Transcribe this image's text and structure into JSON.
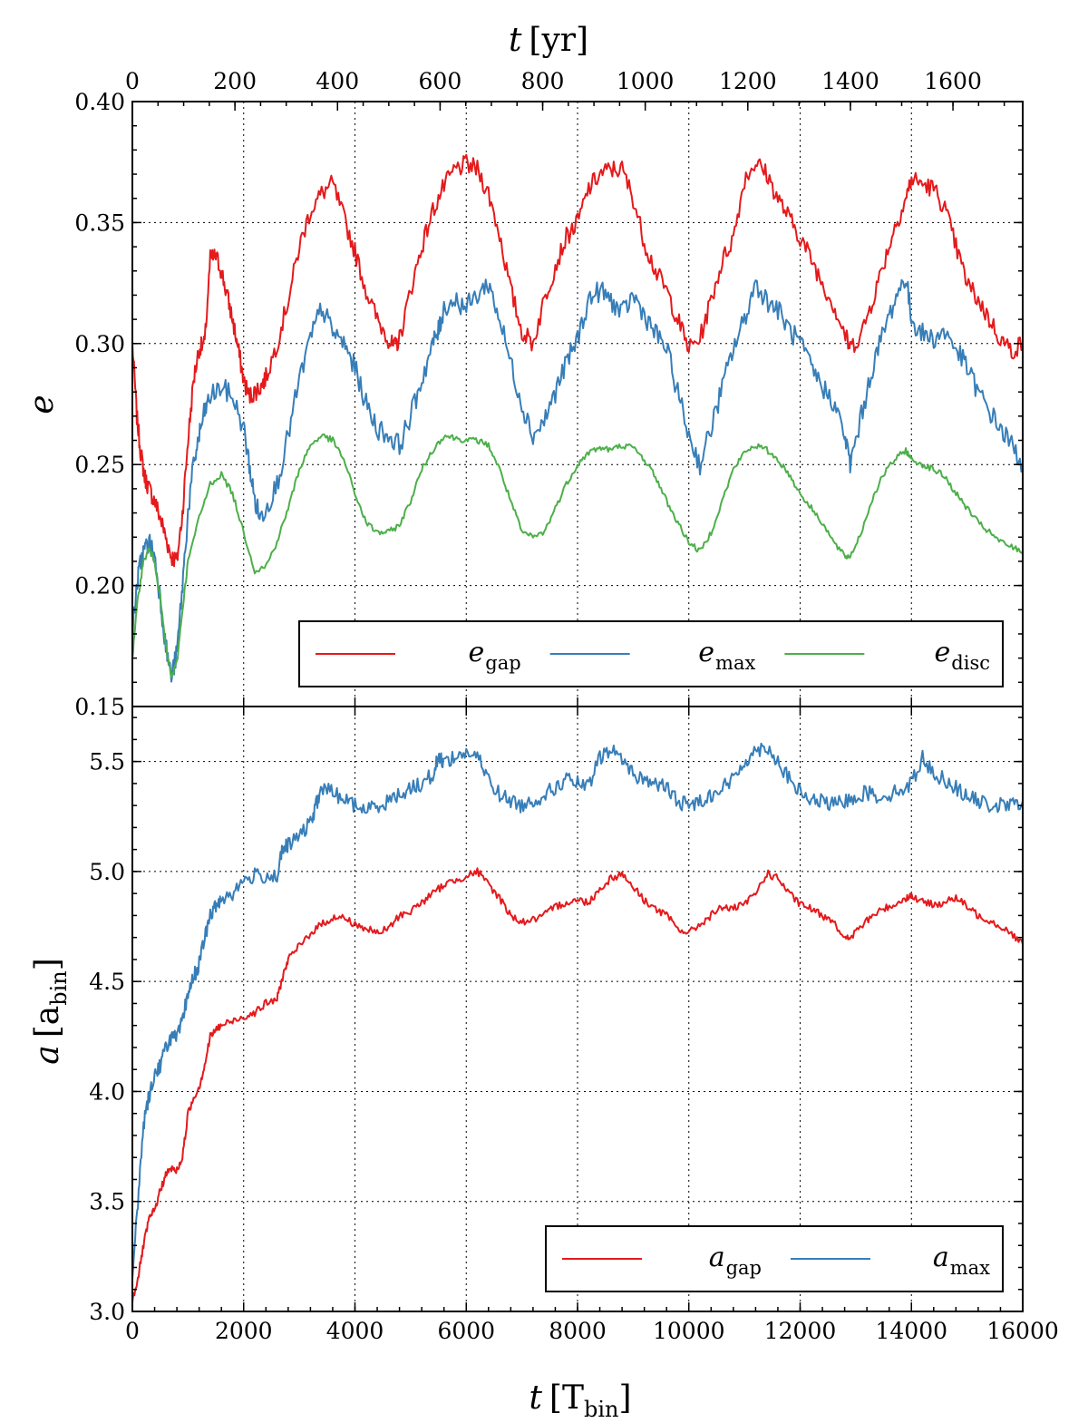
{
  "chart_data": [
    {
      "type": "line",
      "panel": "top",
      "ylabel": "e",
      "top_xlabel": "t [yr]",
      "ylim": [
        0.15,
        0.4
      ],
      "xlim": [
        0,
        16000
      ],
      "yticks": [
        "0.15",
        "0.20",
        "0.25",
        "0.30",
        "0.35",
        "0.40"
      ],
      "top_xticks": [
        "0",
        "200",
        "400",
        "600",
        "800",
        "1000",
        "1200",
        "1400",
        "1600"
      ],
      "top_xtick_values_yr": [
        0,
        200,
        400,
        600,
        800,
        1000,
        1200,
        1400,
        1600
      ],
      "yr_per_tbin": 0.1085,
      "grid": true,
      "legend_position": "lower-right",
      "colors": {
        "gap": "#e41a1c",
        "max": "#377eb8",
        "disc": "#4daf4a"
      },
      "series": [
        {
          "name": "e_gap",
          "key": "gap",
          "label_main": "e",
          "label_sub": "gap",
          "x": [
            0,
            80,
            150,
            220,
            300,
            400,
            500,
            600,
            700,
            800,
            900,
            1000,
            1100,
            1200,
            1300,
            1400,
            1500,
            1600,
            1700,
            1800,
            1900,
            2000,
            2100,
            2200,
            2300,
            2400,
            2600,
            2800,
            3000,
            3200,
            3400,
            3600,
            3800,
            4000,
            4200,
            4400,
            4600,
            4700,
            4800,
            5000,
            5200,
            5400,
            5600,
            5800,
            6000,
            6200,
            6400,
            6600,
            6800,
            7000,
            7200,
            7400,
            7600,
            7800,
            8000,
            8200,
            8400,
            8600,
            8800,
            9000,
            9200,
            9400,
            9600,
            9800,
            10000,
            10200,
            10400,
            10600,
            10800,
            11000,
            11200,
            11400,
            11600,
            11800,
            12000,
            12200,
            12400,
            12600,
            12800,
            12900,
            13100,
            13300,
            13500,
            13700,
            13900,
            14000,
            14200,
            14400,
            14600,
            14800,
            15000,
            15200,
            15400,
            15600,
            15800,
            16000
          ],
          "y": [
            0.3,
            0.27,
            0.255,
            0.245,
            0.24,
            0.235,
            0.228,
            0.22,
            0.212,
            0.21,
            0.23,
            0.26,
            0.285,
            0.298,
            0.3,
            0.335,
            0.336,
            0.33,
            0.32,
            0.31,
            0.298,
            0.285,
            0.278,
            0.28,
            0.282,
            0.286,
            0.3,
            0.318,
            0.34,
            0.355,
            0.362,
            0.366,
            0.352,
            0.338,
            0.322,
            0.31,
            0.302,
            0.298,
            0.302,
            0.322,
            0.34,
            0.355,
            0.365,
            0.372,
            0.374,
            0.372,
            0.362,
            0.345,
            0.322,
            0.305,
            0.3,
            0.318,
            0.332,
            0.344,
            0.35,
            0.364,
            0.37,
            0.372,
            0.372,
            0.36,
            0.342,
            0.33,
            0.322,
            0.31,
            0.298,
            0.302,
            0.318,
            0.334,
            0.344,
            0.368,
            0.375,
            0.37,
            0.36,
            0.352,
            0.344,
            0.335,
            0.325,
            0.316,
            0.304,
            0.298,
            0.304,
            0.318,
            0.333,
            0.348,
            0.36,
            0.368,
            0.366,
            0.364,
            0.356,
            0.34,
            0.325,
            0.318,
            0.31,
            0.302,
            0.297,
            0.3
          ]
        },
        {
          "name": "e_max",
          "key": "max",
          "label_main": "e",
          "label_sub": "max",
          "x": [
            0,
            80,
            150,
            220,
            300,
            400,
            500,
            600,
            700,
            800,
            900,
            1000,
            1100,
            1200,
            1300,
            1400,
            1600,
            1800,
            2000,
            2100,
            2200,
            2300,
            2400,
            2600,
            2800,
            3000,
            3200,
            3400,
            3600,
            3800,
            4000,
            4200,
            4400,
            4600,
            4800,
            5000,
            5200,
            5400,
            5500,
            5600,
            5800,
            6000,
            6200,
            6400,
            6600,
            6800,
            7000,
            7200,
            7400,
            7600,
            7800,
            8000,
            8200,
            8400,
            8600,
            8800,
            9000,
            9200,
            9400,
            9600,
            9800,
            10000,
            10200,
            10400,
            10600,
            10800,
            11000,
            11200,
            11400,
            11600,
            11800,
            12000,
            12200,
            12400,
            12600,
            12800,
            12900,
            13100,
            13300,
            13500,
            13700,
            13900,
            14000,
            14200,
            14400,
            14600,
            14800,
            15000,
            15200,
            15400,
            15600,
            15800,
            16000
          ],
          "y": [
            0.18,
            0.2,
            0.21,
            0.215,
            0.218,
            0.212,
            0.195,
            0.175,
            0.162,
            0.172,
            0.2,
            0.23,
            0.25,
            0.262,
            0.272,
            0.278,
            0.282,
            0.278,
            0.265,
            0.25,
            0.235,
            0.228,
            0.232,
            0.242,
            0.262,
            0.285,
            0.302,
            0.315,
            0.305,
            0.3,
            0.29,
            0.275,
            0.265,
            0.262,
            0.258,
            0.27,
            0.285,
            0.3,
            0.305,
            0.315,
            0.318,
            0.315,
            0.32,
            0.325,
            0.31,
            0.292,
            0.275,
            0.262,
            0.268,
            0.28,
            0.292,
            0.302,
            0.318,
            0.322,
            0.318,
            0.312,
            0.32,
            0.312,
            0.304,
            0.298,
            0.28,
            0.262,
            0.25,
            0.265,
            0.282,
            0.298,
            0.31,
            0.325,
            0.318,
            0.314,
            0.306,
            0.3,
            0.29,
            0.282,
            0.276,
            0.262,
            0.25,
            0.27,
            0.29,
            0.305,
            0.318,
            0.328,
            0.31,
            0.304,
            0.302,
            0.305,
            0.298,
            0.29,
            0.28,
            0.272,
            0.265,
            0.258,
            0.25
          ]
        },
        {
          "name": "e_disc",
          "key": "disc",
          "label_main": "e",
          "label_sub": "disc",
          "x": [
            0,
            100,
            200,
            300,
            400,
            500,
            600,
            700,
            800,
            900,
            1000,
            1200,
            1400,
            1600,
            1800,
            2000,
            2200,
            2400,
            2600,
            2800,
            3000,
            3200,
            3400,
            3600,
            3800,
            4000,
            4200,
            4400,
            4600,
            4800,
            5000,
            5200,
            5400,
            5600,
            5800,
            6000,
            6200,
            6400,
            6600,
            6800,
            7000,
            7200,
            7400,
            7600,
            7800,
            8000,
            8200,
            8400,
            8600,
            8800,
            9000,
            9200,
            9400,
            9600,
            9800,
            10000,
            10200,
            10400,
            10600,
            10800,
            11000,
            11200,
            11400,
            11600,
            11800,
            12000,
            12200,
            12400,
            12600,
            12800,
            12900,
            13100,
            13300,
            13500,
            13700,
            13900,
            14000,
            14200,
            14400,
            14600,
            14800,
            15000,
            15200,
            15400,
            15600,
            15800,
            16000
          ],
          "y": [
            0.17,
            0.195,
            0.21,
            0.215,
            0.21,
            0.195,
            0.175,
            0.162,
            0.168,
            0.19,
            0.21,
            0.228,
            0.242,
            0.246,
            0.238,
            0.222,
            0.206,
            0.208,
            0.218,
            0.232,
            0.248,
            0.258,
            0.262,
            0.26,
            0.252,
            0.238,
            0.226,
            0.222,
            0.222,
            0.225,
            0.235,
            0.248,
            0.256,
            0.262,
            0.261,
            0.26,
            0.26,
            0.258,
            0.248,
            0.235,
            0.222,
            0.22,
            0.222,
            0.232,
            0.242,
            0.25,
            0.255,
            0.257,
            0.256,
            0.258,
            0.257,
            0.252,
            0.245,
            0.235,
            0.226,
            0.218,
            0.214,
            0.222,
            0.235,
            0.248,
            0.255,
            0.258,
            0.256,
            0.252,
            0.246,
            0.238,
            0.232,
            0.226,
            0.218,
            0.212,
            0.212,
            0.222,
            0.236,
            0.246,
            0.252,
            0.256,
            0.252,
            0.25,
            0.248,
            0.245,
            0.238,
            0.232,
            0.226,
            0.222,
            0.218,
            0.216,
            0.214
          ]
        }
      ]
    },
    {
      "type": "line",
      "panel": "bottom",
      "xlabel": "t [T_bin]",
      "ylabel": "a [a_bin]",
      "ylim": [
        3.0,
        5.75
      ],
      "xlim": [
        0,
        16000
      ],
      "yticks": [
        "3.0",
        "3.5",
        "4.0",
        "4.5",
        "5.0",
        "5.5"
      ],
      "ytick_values": [
        3.0,
        3.5,
        4.0,
        4.5,
        5.0,
        5.5
      ],
      "xticks": [
        "0",
        "2000",
        "4000",
        "6000",
        "8000",
        "10000",
        "12000",
        "14000",
        "16000"
      ],
      "xtick_values": [
        0,
        2000,
        4000,
        6000,
        8000,
        10000,
        12000,
        14000,
        16000
      ],
      "grid": true,
      "legend_position": "lower-right",
      "colors": {
        "gap": "#e41a1c",
        "max": "#377eb8"
      },
      "series": [
        {
          "name": "a_gap",
          "key": "gap",
          "label_main": "a",
          "label_sub": "gap",
          "x": [
            0,
            100,
            200,
            300,
            400,
            500,
            600,
            700,
            800,
            900,
            1000,
            1100,
            1200,
            1300,
            1400,
            1500,
            1600,
            1800,
            2000,
            2200,
            2400,
            2600,
            2700,
            2800,
            3000,
            3200,
            3400,
            3600,
            3800,
            4000,
            4200,
            4400,
            4600,
            4800,
            5000,
            5200,
            5400,
            5600,
            5800,
            6000,
            6200,
            6400,
            6600,
            6800,
            7000,
            7200,
            7400,
            7600,
            7800,
            8000,
            8200,
            8400,
            8600,
            8800,
            9000,
            9200,
            9400,
            9600,
            9800,
            10000,
            10200,
            10400,
            10600,
            10800,
            11000,
            11200,
            11400,
            11600,
            11800,
            12000,
            12200,
            12400,
            12600,
            12800,
            12900,
            13100,
            13300,
            13500,
            13700,
            13900,
            14000,
            14200,
            14400,
            14600,
            14800,
            15000,
            15200,
            15400,
            15600,
            15800,
            16000
          ],
          "y": [
            3.05,
            3.15,
            3.3,
            3.42,
            3.46,
            3.55,
            3.62,
            3.65,
            3.64,
            3.7,
            3.9,
            3.97,
            4.02,
            4.12,
            4.25,
            4.28,
            4.3,
            4.32,
            4.34,
            4.36,
            4.4,
            4.42,
            4.52,
            4.6,
            4.66,
            4.72,
            4.76,
            4.79,
            4.79,
            4.76,
            4.74,
            4.72,
            4.74,
            4.8,
            4.82,
            4.86,
            4.9,
            4.94,
            4.96,
            4.98,
            5.0,
            4.94,
            4.88,
            4.8,
            4.77,
            4.78,
            4.8,
            4.84,
            4.86,
            4.87,
            4.86,
            4.92,
            4.97,
            4.99,
            4.93,
            4.87,
            4.83,
            4.8,
            4.74,
            4.72,
            4.76,
            4.8,
            4.84,
            4.83,
            4.85,
            4.9,
            4.99,
            4.97,
            4.9,
            4.85,
            4.83,
            4.8,
            4.78,
            4.69,
            4.7,
            4.75,
            4.8,
            4.83,
            4.85,
            4.88,
            4.89,
            4.86,
            4.85,
            4.86,
            4.88,
            4.84,
            4.8,
            4.78,
            4.75,
            4.72,
            4.67
          ]
        },
        {
          "name": "a_max",
          "key": "max",
          "label_main": "a",
          "label_sub": "max",
          "x": [
            0,
            100,
            200,
            300,
            400,
            500,
            600,
            700,
            800,
            900,
            1000,
            1100,
            1200,
            1300,
            1400,
            1500,
            1600,
            1800,
            2000,
            2200,
            2400,
            2600,
            2700,
            2800,
            3000,
            3200,
            3300,
            3400,
            3600,
            3800,
            4000,
            4200,
            4400,
            4600,
            4800,
            5000,
            5200,
            5400,
            5500,
            5600,
            5800,
            6000,
            6200,
            6400,
            6600,
            6800,
            7000,
            7200,
            7400,
            7600,
            7800,
            8000,
            8200,
            8400,
            8600,
            8800,
            9000,
            9200,
            9400,
            9600,
            9800,
            10000,
            10200,
            10400,
            10600,
            10800,
            11000,
            11200,
            11400,
            11600,
            11800,
            12000,
            12200,
            12400,
            12600,
            12800,
            13000,
            13200,
            13400,
            13600,
            13800,
            14000,
            14200,
            14400,
            14600,
            14800,
            15000,
            15200,
            15400,
            15600,
            15800,
            16000
          ],
          "y": [
            3.15,
            3.5,
            3.85,
            3.98,
            4.08,
            4.12,
            4.2,
            4.25,
            4.24,
            4.32,
            4.45,
            4.52,
            4.58,
            4.7,
            4.8,
            4.84,
            4.88,
            4.9,
            4.96,
            4.98,
            4.98,
            4.98,
            5.1,
            5.12,
            5.16,
            5.22,
            5.3,
            5.38,
            5.36,
            5.33,
            5.3,
            5.28,
            5.3,
            5.32,
            5.35,
            5.38,
            5.4,
            5.44,
            5.52,
            5.5,
            5.52,
            5.54,
            5.52,
            5.42,
            5.35,
            5.32,
            5.3,
            5.32,
            5.35,
            5.38,
            5.42,
            5.4,
            5.38,
            5.52,
            5.55,
            5.52,
            5.44,
            5.42,
            5.4,
            5.38,
            5.32,
            5.3,
            5.32,
            5.35,
            5.38,
            5.42,
            5.5,
            5.55,
            5.57,
            5.5,
            5.42,
            5.36,
            5.32,
            5.32,
            5.3,
            5.32,
            5.34,
            5.36,
            5.34,
            5.35,
            5.37,
            5.4,
            5.52,
            5.44,
            5.42,
            5.38,
            5.34,
            5.32,
            5.3,
            5.3,
            5.3,
            5.32
          ]
        }
      ]
    }
  ]
}
